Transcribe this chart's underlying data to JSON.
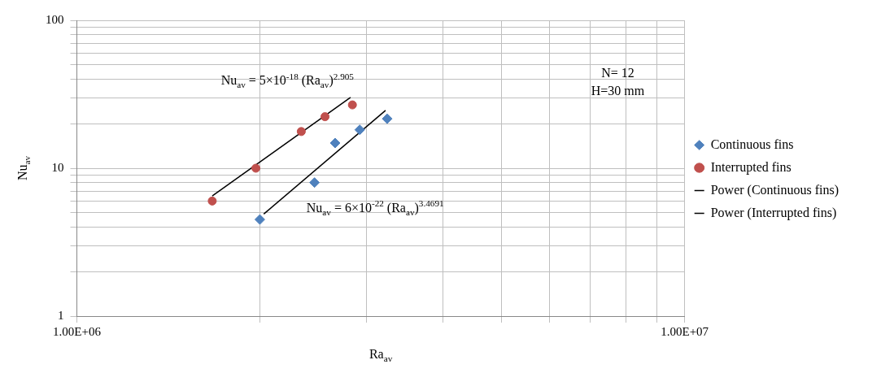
{
  "chart_data": {
    "type": "scatter",
    "xlabel": "Ra$_{av}$",
    "ylabel": "Nu$_{av}$",
    "log": "xy",
    "grid": true,
    "legend": "right",
    "xlim": [
      1000000,
      10000000
    ],
    "ylim": [
      1,
      100
    ],
    "xticks": [
      {
        "value": 1000000,
        "label": "1.00E+06"
      },
      {
        "value": 2000000,
        "label": null
      },
      {
        "value": 3000000,
        "label": null
      },
      {
        "value": 4000000,
        "label": null
      },
      {
        "value": 5000000,
        "label": null
      },
      {
        "value": 6000000,
        "label": null
      },
      {
        "value": 7000000,
        "label": null
      },
      {
        "value": 8000000,
        "label": null
      },
      {
        "value": 9000000,
        "label": null
      },
      {
        "value": 10000000,
        "label": "1.00E+07"
      }
    ],
    "yticks": [
      1,
      {
        "value": 2,
        "label": null
      },
      {
        "value": 3,
        "label": null
      },
      {
        "value": 4,
        "label": null
      },
      {
        "value": 5,
        "label": null
      },
      {
        "value": 6,
        "label": null
      },
      {
        "value": 7,
        "label": null
      },
      {
        "value": 8,
        "label": null
      },
      {
        "value": 9,
        "label": null
      },
      10,
      {
        "value": 20,
        "label": null
      },
      {
        "value": 30,
        "label": null
      },
      {
        "value": 40,
        "label": null
      },
      {
        "value": 50,
        "label": null
      },
      {
        "value": 60,
        "label": null
      },
      {
        "value": 70,
        "label": null
      },
      {
        "value": 80,
        "label": null
      },
      {
        "value": 90,
        "label": null
      },
      100
    ],
    "series": [
      {
        "name": "Continuous fins",
        "type": "scatter",
        "marker": "diamond",
        "color": "#4f81bd",
        "x": [
          2000000,
          2460000,
          2660000,
          2920000,
          3240000
        ],
        "values": [
          4.5,
          8.0,
          14.8,
          18.2,
          21.6
        ]
      },
      {
        "name": "Interrupted fins",
        "type": "scatter",
        "marker": "circle",
        "color": "#c0504d",
        "x": [
          1670000,
          1970000,
          2340000,
          2560000,
          2840000
        ],
        "values": [
          6.0,
          10,
          17.7,
          22.3,
          26.8
        ]
      },
      {
        "name": "Power (Continuous fins)",
        "type": "line",
        "marker": "none",
        "color": "#000000",
        "x": [
          2030000,
          3220000
        ],
        "values": [
          4.9,
          24.6
        ]
      },
      {
        "name": "Power (Interrupted fins)",
        "type": "line",
        "marker": "none",
        "color": "#000000",
        "x": [
          1670000,
          2820000
        ],
        "values": [
          6.5,
          30.1
        ]
      }
    ],
    "annotations": [
      {
        "text": "Nu$_{av}$ = 5×10$^{-18}$ (Ra$_{av}$)$^{2.905}$",
        "x": 2820000,
        "y": 30.1
      },
      {
        "text": "Nu$_{av}$ = 6×10$^{-22}$ (Ra$_{av}$)$^{3.4691}$",
        "x": 2300000,
        "y": 7.6
      },
      "N= 12",
      "H=30 mm"
    ]
  }
}
